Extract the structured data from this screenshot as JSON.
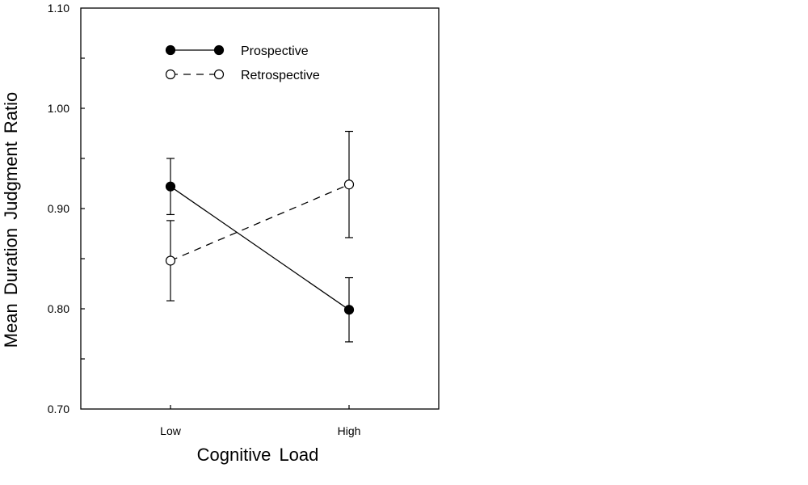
{
  "chart_data": {
    "type": "line",
    "title": "",
    "xlabel": "Cognitive Load",
    "ylabel": "Mean Duration Judgment Ratio",
    "categories": [
      "Low",
      "High"
    ],
    "ylim": [
      0.7,
      1.1
    ],
    "yticks": [
      "0.70",
      "0.80",
      "0.90",
      "1.00",
      "1.10"
    ],
    "ytick_values": [
      0.7,
      0.8,
      0.9,
      1.0,
      1.1
    ],
    "grid": false,
    "legend_position": "top-left",
    "series": [
      {
        "name": "Prospective",
        "marker": "filled-circle",
        "line_style": "solid",
        "values": [
          0.922,
          0.799
        ],
        "error_upper": [
          0.95,
          0.831
        ],
        "error_lower": [
          0.894,
          0.767
        ]
      },
      {
        "name": "Retrospective",
        "marker": "open-circle",
        "line_style": "dashed",
        "values": [
          0.848,
          0.924
        ],
        "error_upper": [
          0.888,
          0.977
        ],
        "error_lower": [
          0.808,
          0.871
        ]
      }
    ]
  }
}
